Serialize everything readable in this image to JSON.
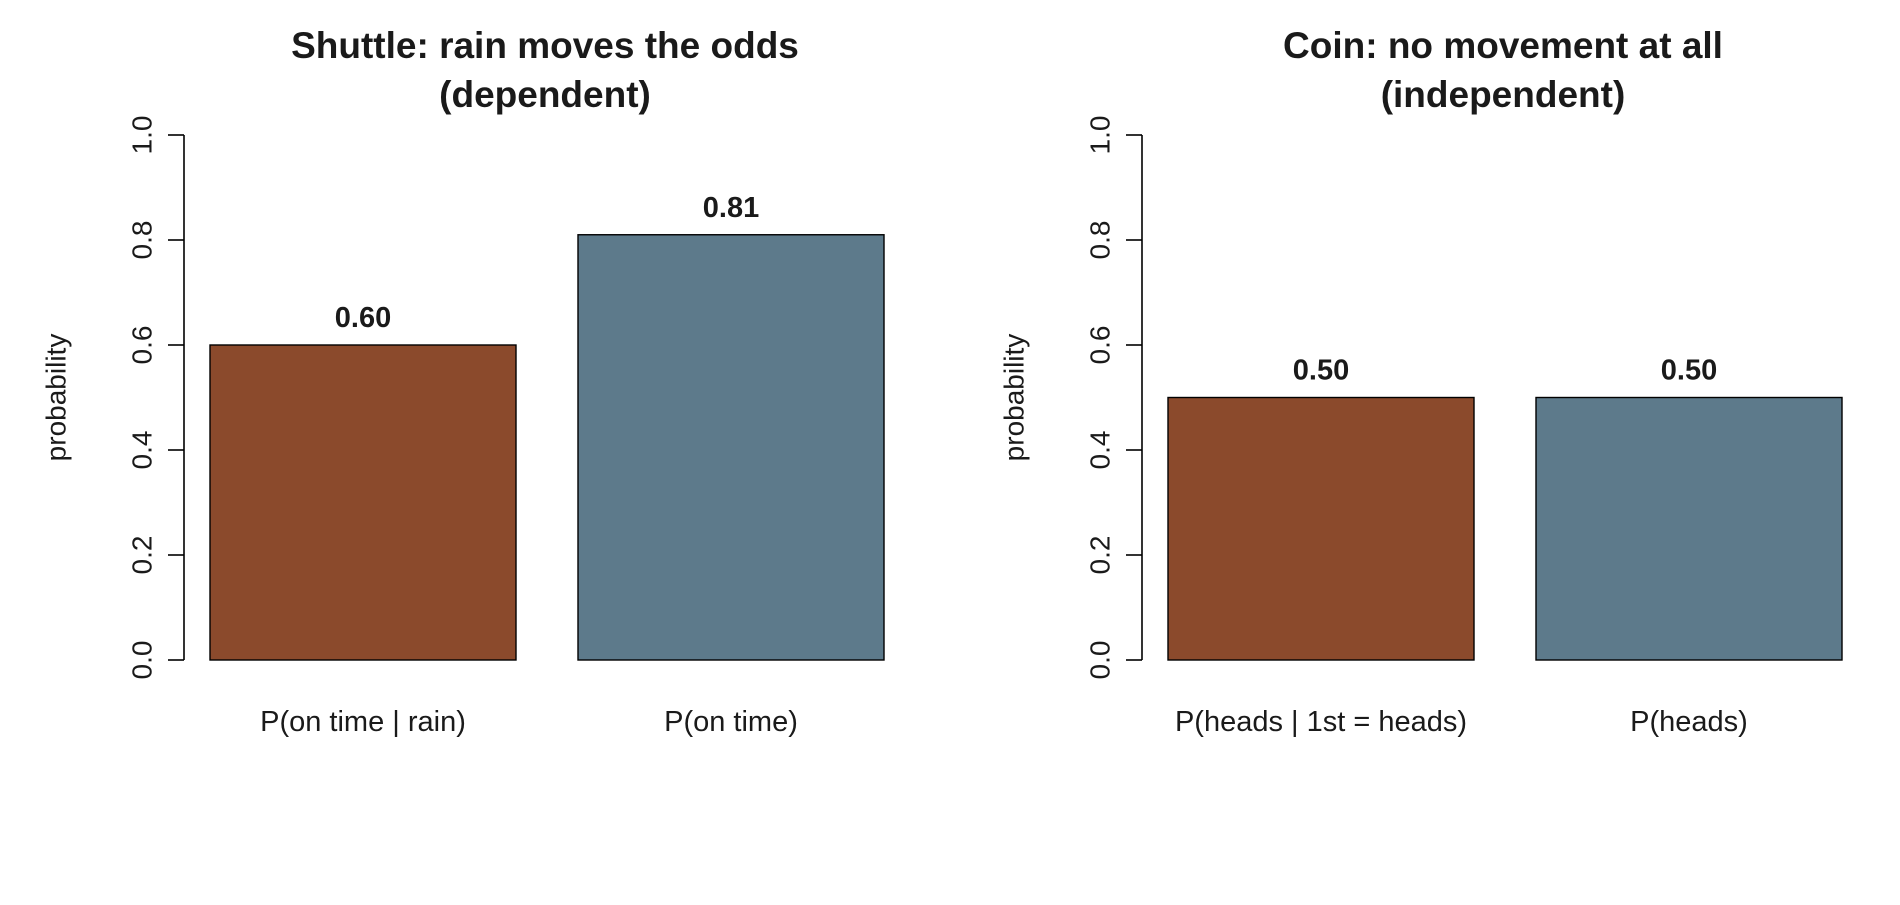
{
  "chart_data": [
    {
      "type": "bar",
      "title": [
        "Shuttle: rain moves the odds",
        "(dependent)"
      ],
      "xlabel": "",
      "ylabel": "probability",
      "categories": [
        "P(on time | rain)",
        "P(on time)"
      ],
      "values": [
        0.6,
        0.81
      ],
      "value_labels": [
        "0.60",
        "0.81"
      ],
      "colors": [
        "#8b4a2c",
        "#5d7a8b"
      ],
      "ylim": [
        0,
        1
      ],
      "yticks": [
        0.0,
        0.2,
        0.4,
        0.6,
        0.8,
        1.0
      ],
      "ytick_labels": [
        "0.0",
        "0.2",
        "0.4",
        "0.6",
        "0.8",
        "1.0"
      ],
      "grid": false,
      "legend": "none"
    },
    {
      "type": "bar",
      "title": [
        "Coin: no movement at all",
        "(independent)"
      ],
      "xlabel": "",
      "ylabel": "probability",
      "categories": [
        "P(heads | 1st = heads)",
        "P(heads)"
      ],
      "values": [
        0.5,
        0.5
      ],
      "value_labels": [
        "0.50",
        "0.50"
      ],
      "colors": [
        "#8b4a2c",
        "#5d7a8b"
      ],
      "ylim": [
        0,
        1
      ],
      "yticks": [
        0.0,
        0.2,
        0.4,
        0.6,
        0.8,
        1.0
      ],
      "ytick_labels": [
        "0.0",
        "0.2",
        "0.4",
        "0.6",
        "0.8",
        "1.0"
      ],
      "grid": false,
      "legend": "none"
    }
  ]
}
